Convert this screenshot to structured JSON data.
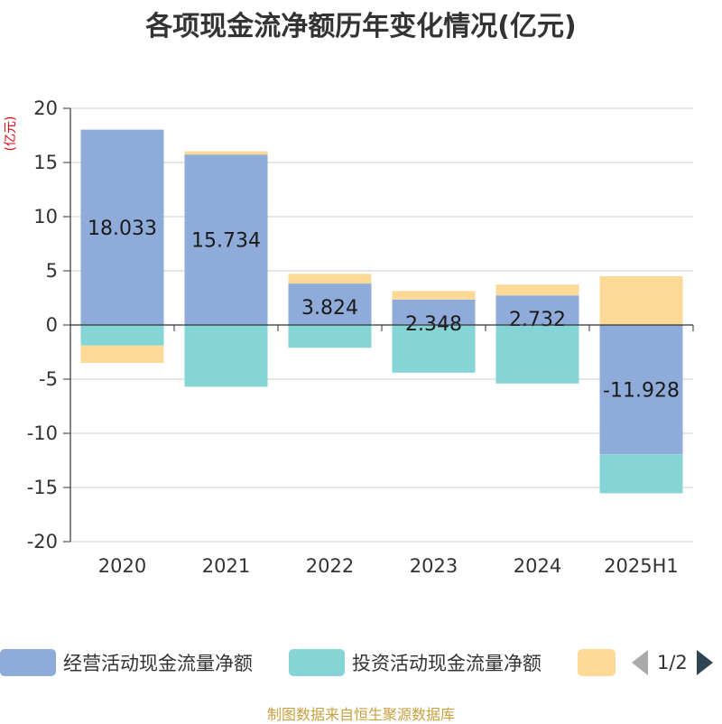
{
  "title": "各项现金流净额历年变化情况(亿元)",
  "source": "制图数据来自恒生聚源数据库",
  "legend": {
    "items": [
      {
        "label": "经营活动现金流量净额",
        "color": "#8eabd9"
      },
      {
        "label": "投资活动现金流量净额",
        "color": "#85d5d7"
      },
      {
        "label": "",
        "color": "#fdd998"
      }
    ],
    "page": "1/2"
  },
  "chart_data": {
    "type": "bar",
    "stacked": true,
    "categories": [
      "2020",
      "2021",
      "2022",
      "2023",
      "2024",
      "2025H1"
    ],
    "ylabel": "(亿元)",
    "ylim": [
      -20,
      20
    ],
    "yticks": [
      20,
      15,
      10,
      5,
      0,
      -5,
      -10,
      -15,
      -20
    ],
    "grid": true,
    "legend_position": "bottom",
    "series": [
      {
        "name": "经营活动现金流量净额",
        "color": "#8eabd9",
        "values": [
          18.033,
          15.734,
          3.824,
          2.348,
          2.732,
          -11.928
        ],
        "labels": [
          "18.033",
          "15.734",
          "3.824",
          "2.348",
          "2.732",
          "-11.928"
        ]
      },
      {
        "name": "投资活动现金流量净额",
        "color": "#85d5d7",
        "values": [
          -1.9,
          -5.7,
          -2.1,
          -4.4,
          -5.4,
          -3.6
        ]
      },
      {
        "color": "#fdd998",
        "values": [
          -1.6,
          0.3,
          0.9,
          0.8,
          1.0,
          4.5
        ]
      }
    ]
  }
}
